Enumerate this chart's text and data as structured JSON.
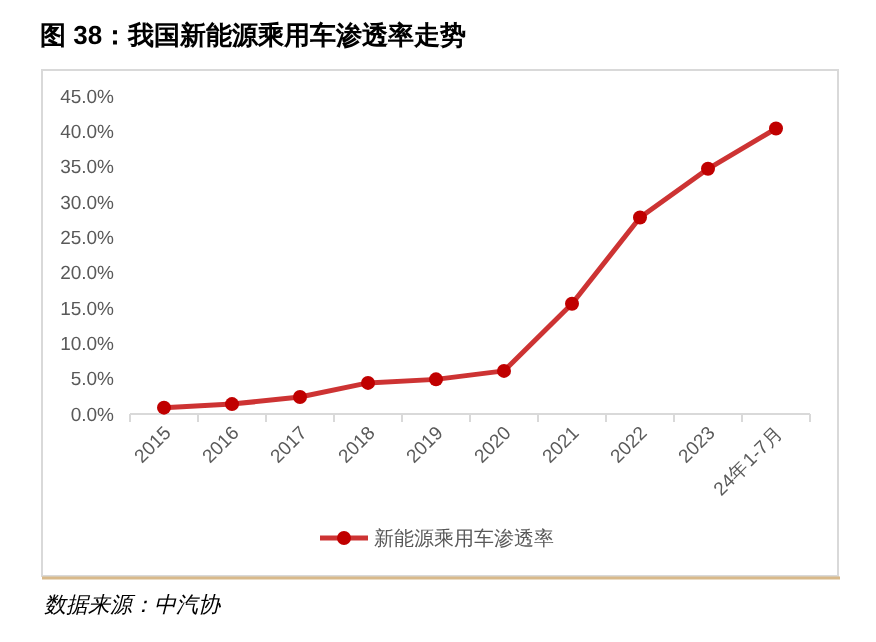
{
  "chart_data": {
    "type": "line",
    "title": "图 38：我国新能源乘用车渗透率走势",
    "categories": [
      "2015",
      "2016",
      "2017",
      "2018",
      "2019",
      "2020",
      "2021",
      "2022",
      "2023",
      "24年1-7月"
    ],
    "series": [
      {
        "name": "新能源乘用车渗透率",
        "color": "#c00000",
        "values": [
          0.9,
          1.4,
          2.4,
          4.4,
          4.9,
          6.1,
          15.6,
          27.8,
          34.7,
          40.4
        ]
      }
    ],
    "ylim": [
      0,
      45
    ],
    "yticks": [
      {
        "value": 0,
        "label": "0.0%"
      },
      {
        "value": 5,
        "label": "5.0%"
      },
      {
        "value": 10,
        "label": "10.0%"
      },
      {
        "value": 15,
        "label": "15.0%"
      },
      {
        "value": 20,
        "label": "20.0%"
      },
      {
        "value": 25,
        "label": "25.0%"
      },
      {
        "value": 30,
        "label": "30.0%"
      },
      {
        "value": 35,
        "label": "35.0%"
      },
      {
        "value": 40,
        "label": "40.0%"
      },
      {
        "value": 45,
        "label": "45.0%"
      }
    ],
    "grid": false,
    "legend": "bottom",
    "marker": "circle",
    "line_style": "solid",
    "annotations": [
      "数据来源：中汽协"
    ]
  }
}
